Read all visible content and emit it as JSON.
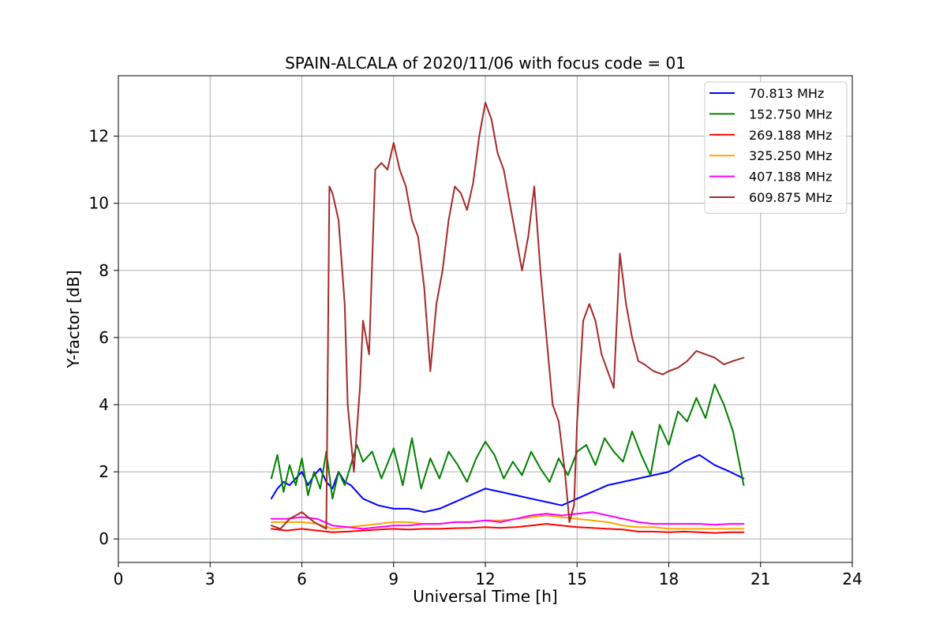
{
  "chart_data": {
    "type": "line",
    "title": "SPAIN-ALCALA of 2020/11/06 with focus code = 01",
    "xlabel": "Universal Time [h]",
    "ylabel": "Y-factor [dB]",
    "xlim": [
      0,
      24
    ],
    "ylim": [
      -0.7,
      13.8
    ],
    "xticks": [
      0,
      3,
      6,
      9,
      12,
      15,
      18,
      21,
      24
    ],
    "yticks": [
      0,
      2,
      4,
      6,
      8,
      10,
      12
    ],
    "grid": true,
    "legend_position": "top-right",
    "series": [
      {
        "name": " 70.813 MHz",
        "color": "#0000ff",
        "x": [
          5.0,
          5.2,
          5.4,
          5.6,
          5.8,
          6.0,
          6.2,
          6.4,
          6.6,
          6.8,
          7.0,
          7.2,
          7.4,
          7.6,
          7.8,
          8.0,
          8.5,
          9.0,
          9.5,
          10.0,
          10.5,
          11.0,
          11.5,
          12.0,
          12.5,
          13.0,
          13.5,
          14.0,
          14.5,
          15.0,
          15.5,
          16.0,
          16.5,
          17.0,
          17.5,
          18.0,
          18.5,
          19.0,
          19.5,
          20.0,
          20.45
        ],
        "y": [
          1.2,
          1.5,
          1.7,
          1.6,
          1.8,
          2.0,
          1.6,
          1.9,
          2.1,
          1.7,
          1.5,
          2.0,
          1.7,
          1.6,
          1.4,
          1.2,
          1.0,
          0.9,
          0.9,
          0.8,
          0.9,
          1.1,
          1.3,
          1.5,
          1.4,
          1.3,
          1.2,
          1.1,
          1.0,
          1.2,
          1.4,
          1.6,
          1.7,
          1.8,
          1.9,
          2.0,
          2.3,
          2.5,
          2.2,
          2.0,
          1.8
        ]
      },
      {
        "name": "152.750 MHz",
        "color": "#008000",
        "x": [
          5.0,
          5.2,
          5.4,
          5.6,
          5.8,
          6.0,
          6.2,
          6.4,
          6.6,
          6.8,
          7.0,
          7.2,
          7.4,
          7.6,
          7.8,
          8.0,
          8.3,
          8.6,
          9.0,
          9.3,
          9.6,
          9.9,
          10.2,
          10.5,
          10.8,
          11.1,
          11.4,
          11.7,
          12.0,
          12.3,
          12.6,
          12.9,
          13.2,
          13.5,
          13.8,
          14.1,
          14.4,
          14.7,
          15.0,
          15.3,
          15.6,
          15.9,
          16.2,
          16.5,
          16.8,
          17.1,
          17.4,
          17.7,
          18.0,
          18.3,
          18.6,
          18.9,
          19.2,
          19.5,
          19.8,
          20.1,
          20.45
        ],
        "y": [
          1.8,
          2.5,
          1.4,
          2.2,
          1.6,
          2.4,
          1.3,
          2.0,
          1.5,
          2.6,
          1.2,
          2.0,
          1.6,
          2.2,
          2.8,
          2.3,
          2.6,
          1.8,
          2.7,
          1.6,
          3.0,
          1.5,
          2.4,
          1.8,
          2.6,
          2.2,
          1.7,
          2.4,
          2.9,
          2.5,
          1.8,
          2.3,
          1.9,
          2.6,
          2.1,
          1.7,
          2.4,
          1.9,
          2.6,
          2.8,
          2.2,
          3.0,
          2.6,
          2.3,
          3.2,
          2.5,
          1.9,
          3.4,
          2.8,
          3.8,
          3.5,
          4.2,
          3.6,
          4.6,
          4.0,
          3.2,
          1.6
        ]
      },
      {
        "name": "269.188 MHz",
        "color": "#ff0000",
        "x": [
          5.0,
          5.5,
          6.0,
          6.5,
          7.0,
          7.5,
          8.0,
          8.5,
          9.0,
          9.5,
          10.0,
          10.5,
          11.0,
          11.5,
          12.0,
          12.5,
          13.0,
          13.5,
          14.0,
          14.5,
          15.0,
          15.5,
          16.0,
          16.5,
          17.0,
          17.5,
          18.0,
          18.5,
          19.0,
          19.5,
          20.0,
          20.45
        ],
        "y": [
          0.3,
          0.25,
          0.3,
          0.25,
          0.2,
          0.22,
          0.25,
          0.28,
          0.3,
          0.28,
          0.3,
          0.3,
          0.32,
          0.33,
          0.35,
          0.33,
          0.35,
          0.4,
          0.45,
          0.4,
          0.35,
          0.33,
          0.3,
          0.28,
          0.22,
          0.22,
          0.2,
          0.22,
          0.2,
          0.18,
          0.2,
          0.2
        ]
      },
      {
        "name": "325.250 MHz",
        "color": "#ffa500",
        "x": [
          5.0,
          5.5,
          6.0,
          6.5,
          7.0,
          7.5,
          8.0,
          8.5,
          9.0,
          9.5,
          10.0,
          10.5,
          11.0,
          11.5,
          12.0,
          12.5,
          13.0,
          13.5,
          14.0,
          14.5,
          15.0,
          15.5,
          16.0,
          16.5,
          17.0,
          17.5,
          18.0,
          18.5,
          19.0,
          19.5,
          20.0,
          20.45
        ],
        "y": [
          0.5,
          0.5,
          0.5,
          0.45,
          0.3,
          0.35,
          0.4,
          0.45,
          0.5,
          0.5,
          0.45,
          0.45,
          0.5,
          0.5,
          0.55,
          0.55,
          0.6,
          0.65,
          0.7,
          0.65,
          0.6,
          0.55,
          0.5,
          0.4,
          0.35,
          0.35,
          0.3,
          0.3,
          0.3,
          0.3,
          0.3,
          0.3
        ]
      },
      {
        "name": "407.188 MHz",
        "color": "#ff00ff",
        "x": [
          5.0,
          5.5,
          6.0,
          6.5,
          7.0,
          7.5,
          8.0,
          8.5,
          9.0,
          9.5,
          10.0,
          10.5,
          11.0,
          11.5,
          12.0,
          12.5,
          13.0,
          13.5,
          14.0,
          14.5,
          15.0,
          15.5,
          16.0,
          16.5,
          17.0,
          17.5,
          18.0,
          18.5,
          19.0,
          19.5,
          20.0,
          20.45
        ],
        "y": [
          0.6,
          0.6,
          0.65,
          0.6,
          0.4,
          0.35,
          0.3,
          0.35,
          0.4,
          0.4,
          0.45,
          0.45,
          0.5,
          0.5,
          0.55,
          0.5,
          0.6,
          0.7,
          0.75,
          0.7,
          0.75,
          0.8,
          0.7,
          0.6,
          0.5,
          0.45,
          0.45,
          0.45,
          0.45,
          0.42,
          0.45,
          0.45
        ]
      },
      {
        "name": "609.875 MHz",
        "color": "#a52a2a",
        "x": [
          5.0,
          5.3,
          5.6,
          6.0,
          6.4,
          6.8,
          6.9,
          7.0,
          7.2,
          7.4,
          7.5,
          7.7,
          7.9,
          8.0,
          8.2,
          8.4,
          8.6,
          8.8,
          9.0,
          9.2,
          9.4,
          9.6,
          9.8,
          10.0,
          10.2,
          10.4,
          10.6,
          10.8,
          11.0,
          11.2,
          11.4,
          11.6,
          11.8,
          12.0,
          12.2,
          12.4,
          12.6,
          12.8,
          13.0,
          13.2,
          13.4,
          13.6,
          13.8,
          14.0,
          14.2,
          14.4,
          14.6,
          14.75,
          14.9,
          15.0,
          15.2,
          15.4,
          15.6,
          15.8,
          16.0,
          16.2,
          16.4,
          16.6,
          16.8,
          17.0,
          17.2,
          17.5,
          17.8,
          18.0,
          18.3,
          18.6,
          18.9,
          19.2,
          19.5,
          19.8,
          20.1,
          20.45
        ],
        "y": [
          0.4,
          0.3,
          0.6,
          0.8,
          0.5,
          0.3,
          10.5,
          10.3,
          9.5,
          7.0,
          4.0,
          2.0,
          4.5,
          6.5,
          5.5,
          11.0,
          11.2,
          11.0,
          11.8,
          11.0,
          10.5,
          9.5,
          9.0,
          7.5,
          5.0,
          7.0,
          8.0,
          9.5,
          10.5,
          10.3,
          9.8,
          10.6,
          12.0,
          13.0,
          12.5,
          11.5,
          11.0,
          10.0,
          9.0,
          8.0,
          9.0,
          10.5,
          8.0,
          6.0,
          4.0,
          3.5,
          2.0,
          0.5,
          1.0,
          3.5,
          6.5,
          7.0,
          6.5,
          5.5,
          5.0,
          4.5,
          8.5,
          7.0,
          6.0,
          5.3,
          5.2,
          5.0,
          4.9,
          5.0,
          5.1,
          5.3,
          5.6,
          5.5,
          5.4,
          5.2,
          5.3,
          5.4
        ]
      }
    ]
  }
}
